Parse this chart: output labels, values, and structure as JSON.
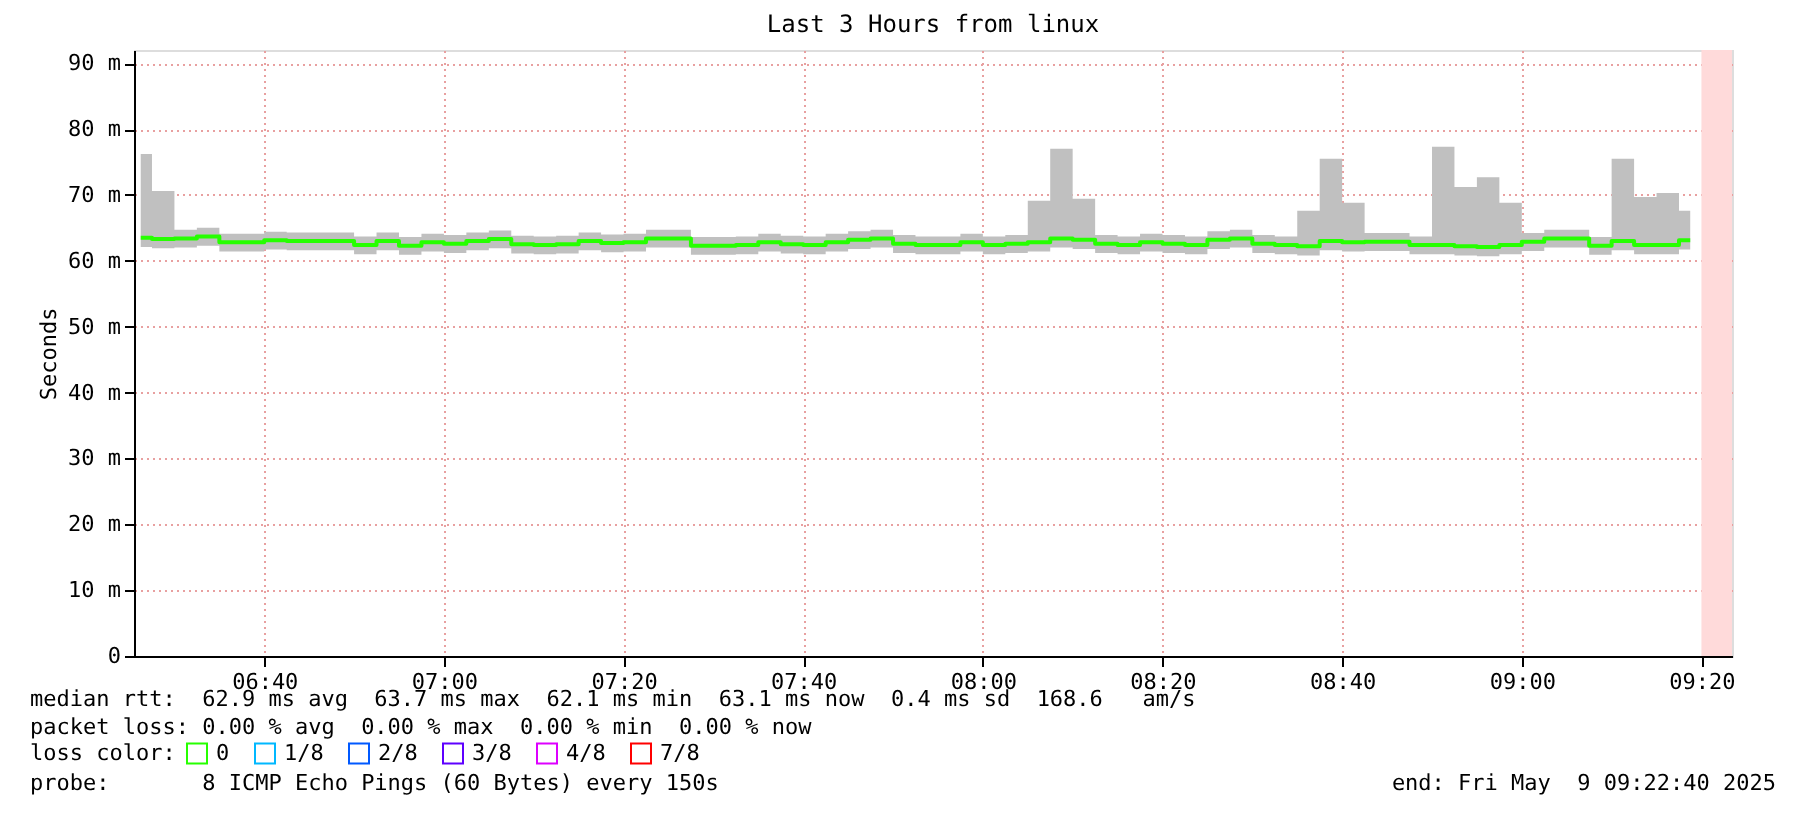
{
  "chart_data": {
    "type": "step",
    "title": "Last 3 Hours from linux",
    "ylabel": "Seconds",
    "legend_title": "loss color:",
    "legend": "bottom left",
    "grid": true,
    "line_style": "solid",
    "x": [
      6.4375,
      6.4792,
      6.5208,
      6.5625,
      6.6042,
      6.6458,
      6.6875,
      6.7292,
      6.7708,
      6.8125,
      6.8542,
      6.8958,
      6.9375,
      6.9792,
      7.0208,
      7.0625,
      7.1042,
      7.1458,
      7.1875,
      7.2292,
      7.2708,
      7.3125,
      7.3542,
      7.3958,
      7.4375,
      7.4792,
      7.5208,
      7.5625,
      7.6042,
      7.6458,
      7.6875,
      7.7292,
      7.7708,
      7.8125,
      7.8542,
      7.8958,
      7.9375,
      7.9792,
      8.0208,
      8.0625,
      8.1042,
      8.1458,
      8.1875,
      8.2292,
      8.2708,
      8.3125,
      8.3542,
      8.3958,
      8.4375,
      8.4792,
      8.5208,
      8.5625,
      8.6042,
      8.6458,
      8.6875,
      8.7292,
      8.7708,
      8.8125,
      8.8542,
      8.8958,
      8.9375,
      8.9792,
      9.0208,
      9.0625,
      9.1042,
      9.1458,
      9.1875,
      9.2292,
      9.2708,
      9.3125
    ],
    "xlim": [
      6.425,
      9.39
    ],
    "xticks": [
      {
        "value": 6.6667,
        "label": "06:40"
      },
      {
        "value": 7.0,
        "label": "07:00"
      },
      {
        "value": 7.3333,
        "label": "07:20"
      },
      {
        "value": 7.6667,
        "label": "07:40"
      },
      {
        "value": 8.0,
        "label": "08:00"
      },
      {
        "value": 8.3333,
        "label": "08:20"
      },
      {
        "value": 8.6667,
        "label": "08:40"
      },
      {
        "value": 9.0,
        "label": "09:00"
      },
      {
        "value": 9.3333,
        "label": "09:20"
      }
    ],
    "ylim": [
      0,
      92
    ],
    "yticks": [
      0,
      {
        "value": 10,
        "label": "10 m"
      },
      {
        "value": 20,
        "label": "20 m"
      },
      {
        "value": 30,
        "label": "30 m"
      },
      {
        "value": 40,
        "label": "40 m"
      },
      {
        "value": 50,
        "label": "50 m"
      },
      {
        "value": 60,
        "label": "60 m"
      },
      {
        "value": 70,
        "label": "70 m"
      },
      {
        "value": 80,
        "label": "80 m"
      },
      {
        "value": 90,
        "label": "90 m"
      }
    ],
    "series": [
      {
        "name": "0",
        "color": "#26ff00",
        "values": [
          63.5,
          63.3,
          63.4,
          63.7,
          62.8,
          62.8,
          63.1,
          63.0,
          63.0,
          63.0,
          62.4,
          63.0,
          62.3,
          62.8,
          62.6,
          63.0,
          63.3,
          62.5,
          62.4,
          62.5,
          63.0,
          62.7,
          62.8,
          63.4,
          63.4,
          62.3,
          62.3,
          62.4,
          62.8,
          62.5,
          62.4,
          62.8,
          63.2,
          63.4,
          62.6,
          62.4,
          62.4,
          62.8,
          62.4,
          62.6,
          62.8,
          63.4,
          63.2,
          62.6,
          62.4,
          62.8,
          62.6,
          62.4,
          63.2,
          63.4,
          62.6,
          62.4,
          62.2,
          63.0,
          62.8,
          62.9,
          62.9,
          62.4,
          62.4,
          62.2,
          62.1,
          62.4,
          62.9,
          63.4,
          63.4,
          62.3,
          63.0,
          62.4,
          62.4,
          63.1
        ],
        "upper": [
          76.2,
          70.6,
          64.7,
          65.0,
          64.1,
          64.1,
          64.4,
          64.3,
          64.3,
          64.3,
          63.7,
          64.3,
          63.6,
          64.1,
          63.9,
          64.3,
          64.6,
          63.8,
          63.7,
          63.8,
          64.3,
          64.0,
          64.1,
          64.7,
          64.7,
          63.6,
          63.6,
          63.7,
          64.1,
          63.8,
          63.7,
          64.1,
          64.5,
          64.7,
          63.9,
          63.7,
          63.7,
          64.1,
          63.7,
          63.9,
          69.1,
          77.0,
          69.4,
          63.9,
          63.7,
          64.1,
          63.9,
          63.7,
          64.5,
          64.7,
          63.9,
          63.7,
          67.6,
          75.5,
          68.8,
          64.2,
          64.2,
          63.7,
          77.3,
          71.2,
          72.7,
          68.8,
          64.2,
          64.7,
          64.7,
          63.6,
          75.5,
          69.7,
          70.3,
          67.6
        ],
        "lower": [
          62.1,
          61.9,
          62.0,
          62.3,
          61.4,
          61.4,
          61.7,
          61.6,
          61.6,
          61.6,
          61.0,
          61.6,
          60.9,
          61.4,
          61.2,
          61.6,
          61.9,
          61.1,
          61.0,
          61.1,
          61.6,
          61.3,
          61.4,
          62.0,
          62.0,
          60.9,
          60.9,
          61.0,
          61.4,
          61.1,
          61.0,
          61.4,
          61.8,
          62.0,
          61.2,
          61.0,
          61.0,
          61.4,
          61.0,
          61.2,
          61.4,
          62.0,
          61.8,
          61.2,
          61.0,
          61.4,
          61.2,
          61.0,
          61.8,
          62.0,
          61.2,
          61.0,
          60.8,
          61.6,
          61.4,
          61.5,
          61.5,
          61.0,
          61.0,
          60.8,
          60.7,
          61.0,
          61.5,
          62.0,
          62.0,
          60.9,
          61.6,
          61.0,
          61.0,
          61.7
        ]
      },
      {
        "name": "1/8",
        "color": "#00b8ff",
        "values": [
          null,
          null,
          null,
          null,
          null,
          null,
          null,
          null,
          null,
          null,
          null,
          null,
          null,
          null,
          null,
          null,
          null,
          null,
          null,
          null,
          null,
          null,
          null,
          null,
          null,
          null,
          null,
          null,
          null,
          null,
          null,
          null,
          null,
          null,
          null,
          null,
          null,
          null,
          null,
          null,
          null,
          null,
          null,
          null,
          null,
          null,
          null,
          null,
          null,
          null,
          null,
          null,
          null,
          null,
          null,
          null,
          null,
          null,
          null,
          null,
          null,
          null,
          null,
          null,
          null,
          null,
          null,
          null,
          null,
          null
        ]
      },
      {
        "name": "2/8",
        "color": "#0059ff",
        "values": [
          null,
          null,
          null,
          null,
          null,
          null,
          null,
          null,
          null,
          null,
          null,
          null,
          null,
          null,
          null,
          null,
          null,
          null,
          null,
          null,
          null,
          null,
          null,
          null,
          null,
          null,
          null,
          null,
          null,
          null,
          null,
          null,
          null,
          null,
          null,
          null,
          null,
          null,
          null,
          null,
          null,
          null,
          null,
          null,
          null,
          null,
          null,
          null,
          null,
          null,
          null,
          null,
          null,
          null,
          null,
          null,
          null,
          null,
          null,
          null,
          null,
          null,
          null,
          null,
          null,
          null,
          null,
          null,
          null,
          null
        ]
      },
      {
        "name": "3/8",
        "color": "#5e00ff",
        "values": [
          null,
          null,
          null,
          null,
          null,
          null,
          null,
          null,
          null,
          null,
          null,
          null,
          null,
          null,
          null,
          null,
          null,
          null,
          null,
          null,
          null,
          null,
          null,
          null,
          null,
          null,
          null,
          null,
          null,
          null,
          null,
          null,
          null,
          null,
          null,
          null,
          null,
          null,
          null,
          null,
          null,
          null,
          null,
          null,
          null,
          null,
          null,
          null,
          null,
          null,
          null,
          null,
          null,
          null,
          null,
          null,
          null,
          null,
          null,
          null,
          null,
          null,
          null,
          null,
          null,
          null,
          null,
          null,
          null,
          null
        ]
      },
      {
        "name": "4/8",
        "color": "#dd00ff",
        "values": [
          null,
          null,
          null,
          null,
          null,
          null,
          null,
          null,
          null,
          null,
          null,
          null,
          null,
          null,
          null,
          null,
          null,
          null,
          null,
          null,
          null,
          null,
          null,
          null,
          null,
          null,
          null,
          null,
          null,
          null,
          null,
          null,
          null,
          null,
          null,
          null,
          null,
          null,
          null,
          null,
          null,
          null,
          null,
          null,
          null,
          null,
          null,
          null,
          null,
          null,
          null,
          null,
          null,
          null,
          null,
          null,
          null,
          null,
          null,
          null,
          null,
          null,
          null,
          null,
          null,
          null,
          null,
          null,
          null,
          null
        ]
      },
      {
        "name": "7/8",
        "color": "#ff0000",
        "values": [
          null,
          null,
          null,
          null,
          null,
          null,
          null,
          null,
          null,
          null,
          null,
          null,
          null,
          null,
          null,
          null,
          null,
          null,
          null,
          null,
          null,
          null,
          null,
          null,
          null,
          null,
          null,
          null,
          null,
          null,
          null,
          null,
          null,
          null,
          null,
          null,
          null,
          null,
          null,
          null,
          null,
          null,
          null,
          null,
          null,
          null,
          null,
          null,
          null,
          null,
          null,
          null,
          null,
          null,
          null,
          null,
          null,
          null,
          null,
          null,
          null,
          null,
          null,
          null,
          null,
          null,
          null,
          null,
          null,
          null
        ]
      }
    ],
    "bands": [
      {
        "axis": "x",
        "from": 9.3333,
        "to": 9.39,
        "color": "#ffdada"
      }
    ],
    "annotations": [
      "median rtt:  62.9 ms avg  63.7 ms max  62.1 ms min  63.1 ms now  0.4 ms sd  168.6   am/s",
      "packet loss: 0.00 % avg  0.00 % max  0.00 % min  0.00 % now",
      "probe:       8 ICMP Echo Pings (60 Bytes) every 150s",
      "end: Fri May  9 09:22:40 2025"
    ]
  }
}
